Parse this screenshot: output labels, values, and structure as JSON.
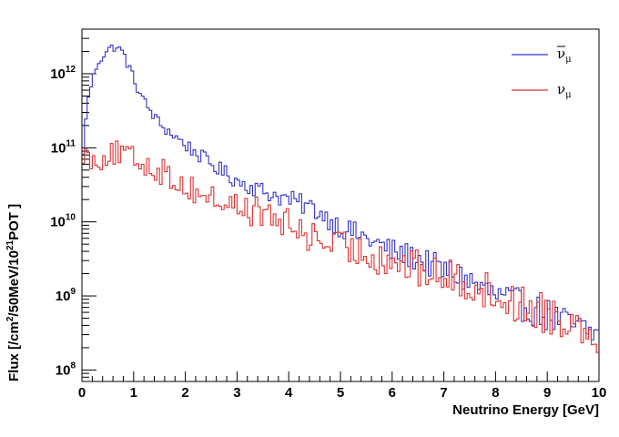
{
  "chart_data": {
    "type": "line",
    "style": "histogram-step",
    "xlabel": "Neutrino Energy [GeV]",
    "ylabel_parts": [
      "Flux [/cm",
      "2",
      "/50MeV/10",
      "21",
      "POT ]"
    ],
    "x_range": [
      0,
      10
    ],
    "y_range": [
      70000000,
      4000000000000
    ],
    "y_scale": "log",
    "bin_width_gev": 0.05,
    "grid": false,
    "legend_placement": "top-right",
    "x_ticks": [
      0,
      1,
      2,
      3,
      4,
      5,
      6,
      7,
      8,
      9,
      10
    ],
    "x_tick_labels": [
      "0",
      "1",
      "2",
      "3",
      "4",
      "5",
      "6",
      "7",
      "8",
      "9",
      "10"
    ],
    "y_ticks": [
      {
        "value": 100000000,
        "base": "10",
        "exp": "8"
      },
      {
        "value": 1000000000,
        "base": "10",
        "exp": "9"
      },
      {
        "value": 10000000000,
        "base": "10",
        "exp": "10"
      },
      {
        "value": 100000000000,
        "base": "10",
        "exp": "11"
      },
      {
        "value": 1000000000000,
        "base": "10",
        "exp": "12"
      }
    ],
    "series": [
      {
        "name": "ν̄μ",
        "name_base": "ν",
        "name_bar": true,
        "name_sub": "μ",
        "color": "#3333cc",
        "anchors": [
          [
            0.0,
            30000000000.0
          ],
          [
            0.05,
            200000000000.0
          ],
          [
            0.15,
            600000000000.0
          ],
          [
            0.3,
            1400000000000.0
          ],
          [
            0.5,
            2100000000000.0
          ],
          [
            0.65,
            2350000000000.0
          ],
          [
            0.8,
            1900000000000.0
          ],
          [
            1.0,
            850000000000.0
          ],
          [
            1.2,
            420000000000.0
          ],
          [
            1.5,
            210000000000.0
          ],
          [
            2.0,
            110000000000.0
          ],
          [
            2.5,
            60000000000.0
          ],
          [
            3.0,
            36000000000.0
          ],
          [
            3.5,
            26000000000.0
          ],
          [
            4.0,
            20000000000.0
          ],
          [
            4.5,
            15000000000.0
          ],
          [
            5.0,
            8500000000.0
          ],
          [
            5.5,
            6000000000.0
          ],
          [
            6.0,
            4000000000.0
          ],
          [
            6.5,
            3200000000.0
          ],
          [
            7.0,
            2200000000.0
          ],
          [
            7.5,
            1600000000.0
          ],
          [
            8.0,
            1000000000.0
          ],
          [
            8.5,
            750000000.0
          ],
          [
            9.0,
            550000000.0
          ],
          [
            9.5,
            380000000.0
          ],
          [
            10.0,
            290000000.0
          ]
        ],
        "noise_low": 0.1,
        "noise_high": 0.45
      },
      {
        "name": "νμ",
        "name_base": "ν",
        "name_bar": false,
        "name_sub": "μ",
        "color": "#e03030",
        "anchors": [
          [
            0.0,
            80000000000.0
          ],
          [
            0.05,
            100000000000.0
          ],
          [
            0.1,
            70000000000.0
          ],
          [
            0.3,
            70000000000.0
          ],
          [
            0.6,
            85000000000.0
          ],
          [
            0.8,
            80000000000.0
          ],
          [
            1.0,
            70000000000.0
          ],
          [
            1.5,
            50000000000.0
          ],
          [
            2.0,
            30000000000.0
          ],
          [
            2.5,
            21000000000.0
          ],
          [
            3.0,
            16000000000.0
          ],
          [
            3.5,
            13000000000.0
          ],
          [
            4.0,
            9000000000.0
          ],
          [
            4.5,
            6000000000.0
          ],
          [
            5.0,
            4500000000.0
          ],
          [
            5.5,
            3800000000.0
          ],
          [
            6.0,
            3000000000.0
          ],
          [
            6.5,
            2300000000.0
          ],
          [
            7.0,
            1800000000.0
          ],
          [
            7.5,
            1500000000.0
          ],
          [
            8.0,
            1000000000.0
          ],
          [
            8.5,
            750000000.0
          ],
          [
            9.0,
            600000000.0
          ],
          [
            9.5,
            450000000.0
          ],
          [
            10.0,
            330000000.0
          ]
        ],
        "noise_low": 0.3,
        "noise_high": 0.55
      }
    ]
  }
}
